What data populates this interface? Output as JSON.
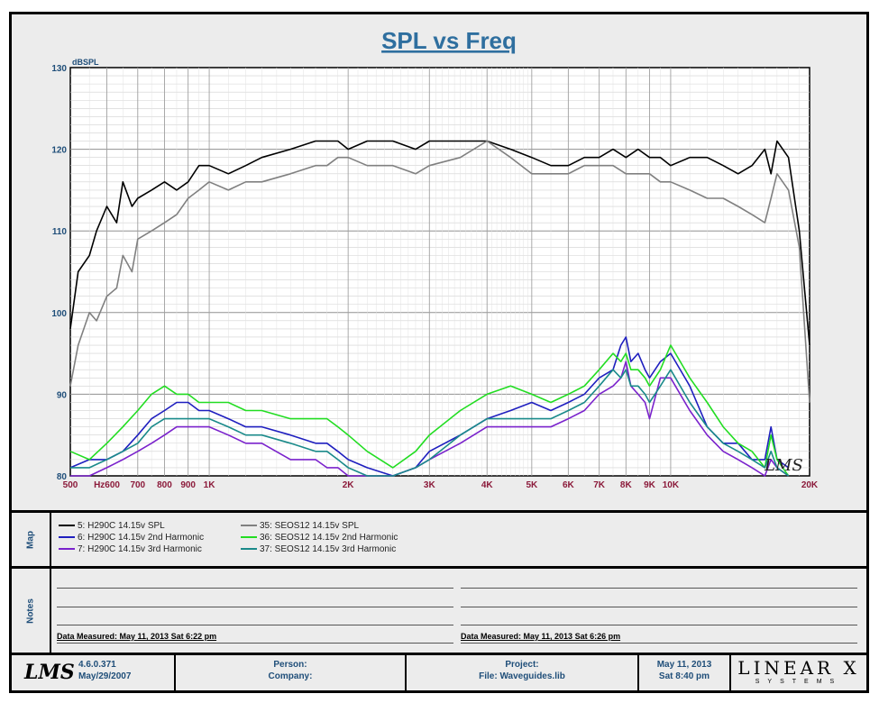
{
  "chart_data": {
    "type": "line",
    "title": "SPL vs Freq",
    "ylabel": "dBSPL",
    "xscale": "log",
    "xlim": [
      500,
      20000
    ],
    "ylim": [
      80,
      130
    ],
    "yticks": [
      80,
      90,
      100,
      110,
      120,
      130
    ],
    "xticks": [
      {
        "v": 500,
        "label": "500"
      },
      {
        "v": 600,
        "label": "Hz600"
      },
      {
        "v": 700,
        "label": "700"
      },
      {
        "v": 800,
        "label": "800"
      },
      {
        "v": 900,
        "label": "900"
      },
      {
        "v": 1000,
        "label": "1K"
      },
      {
        "v": 2000,
        "label": "2K"
      },
      {
        "v": 3000,
        "label": "3K"
      },
      {
        "v": 4000,
        "label": "4K"
      },
      {
        "v": 5000,
        "label": "5K"
      },
      {
        "v": 6000,
        "label": "6K"
      },
      {
        "v": 7000,
        "label": "7K"
      },
      {
        "v": 8000,
        "label": "8K"
      },
      {
        "v": 9000,
        "label": "9K"
      },
      {
        "v": 10000,
        "label": "10K"
      },
      {
        "v": 20000,
        "label": "20K"
      }
    ],
    "grid": true,
    "watermark": "LMS",
    "series": [
      {
        "name": "5: H290C 14.15v SPL",
        "color": "#000000",
        "x": [
          500,
          520,
          550,
          570,
          600,
          630,
          650,
          680,
          700,
          750,
          800,
          850,
          900,
          950,
          1000,
          1100,
          1200,
          1300,
          1500,
          1700,
          1800,
          1900,
          2000,
          2200,
          2500,
          2800,
          3000,
          3500,
          4000,
          4500,
          5000,
          5500,
          6000,
          6500,
          7000,
          7500,
          8000,
          8500,
          9000,
          9500,
          10000,
          11000,
          12000,
          13000,
          14000,
          15000,
          16000,
          16500,
          17000,
          18000,
          19000,
          20000
        ],
        "y": [
          98,
          105,
          107,
          110,
          113,
          111,
          116,
          113,
          114,
          115,
          116,
          115,
          116,
          118,
          118,
          117,
          118,
          119,
          120,
          121,
          121,
          121,
          120,
          121,
          121,
          120,
          121,
          121,
          121,
          120,
          119,
          118,
          118,
          119,
          119,
          120,
          119,
          120,
          119,
          119,
          118,
          119,
          119,
          118,
          117,
          118,
          120,
          117,
          121,
          119,
          110,
          96
        ]
      },
      {
        "name": "35: SEOS12 14.15v SPL",
        "color": "#808080",
        "x": [
          500,
          520,
          550,
          570,
          600,
          630,
          650,
          680,
          700,
          750,
          800,
          850,
          900,
          950,
          1000,
          1100,
          1200,
          1300,
          1500,
          1700,
          1800,
          1900,
          2000,
          2200,
          2500,
          2800,
          3000,
          3500,
          4000,
          4500,
          5000,
          5500,
          6000,
          6500,
          7000,
          7500,
          8000,
          8500,
          9000,
          9500,
          10000,
          11000,
          12000,
          13000,
          14000,
          15000,
          16000,
          16500,
          17000,
          18000,
          19000,
          20000
        ],
        "y": [
          91,
          96,
          100,
          99,
          102,
          103,
          107,
          105,
          109,
          110,
          111,
          112,
          114,
          115,
          116,
          115,
          116,
          116,
          117,
          118,
          118,
          119,
          119,
          118,
          118,
          117,
          118,
          119,
          121,
          119,
          117,
          117,
          117,
          118,
          118,
          118,
          117,
          117,
          117,
          116,
          116,
          115,
          114,
          114,
          113,
          112,
          111,
          114,
          117,
          115,
          108,
          89
        ]
      },
      {
        "name": "6: H290C 14.15v 2nd Harmonic",
        "color": "#1f1fbf",
        "x": [
          500,
          550,
          600,
          650,
          700,
          750,
          800,
          850,
          900,
          950,
          1000,
          1100,
          1200,
          1300,
          1500,
          1700,
          1800,
          1900,
          2000,
          2200,
          2500,
          2800,
          3000,
          3500,
          4000,
          4500,
          5000,
          5500,
          6000,
          6500,
          7000,
          7500,
          7800,
          8000,
          8200,
          8500,
          8800,
          9000,
          9500,
          10000,
          11000,
          12000,
          13000,
          14000,
          15000,
          16000,
          16500,
          17000,
          18000
        ],
        "y": [
          81,
          82,
          82,
          83,
          85,
          87,
          88,
          89,
          89,
          88,
          88,
          87,
          86,
          86,
          85,
          84,
          84,
          83,
          82,
          81,
          80,
          81,
          83,
          85,
          87,
          88,
          89,
          88,
          89,
          90,
          92,
          93,
          96,
          97,
          94,
          95,
          93,
          92,
          94,
          95,
          91,
          86,
          84,
          84,
          82,
          82,
          86,
          82,
          81
        ]
      },
      {
        "name": "36: SEOS12 14.15v 2nd Harmonic",
        "color": "#22dd22",
        "x": [
          500,
          550,
          600,
          650,
          700,
          750,
          800,
          850,
          900,
          950,
          1000,
          1100,
          1200,
          1300,
          1500,
          1700,
          1800,
          1900,
          2000,
          2200,
          2500,
          2800,
          3000,
          3500,
          4000,
          4500,
          5000,
          5500,
          6000,
          6500,
          7000,
          7500,
          7800,
          8000,
          8200,
          8500,
          8800,
          9000,
          9500,
          10000,
          11000,
          12000,
          13000,
          14000,
          15000,
          16000,
          16500,
          17000,
          18000
        ],
        "y": [
          83,
          82,
          84,
          86,
          88,
          90,
          91,
          90,
          90,
          89,
          89,
          89,
          88,
          88,
          87,
          87,
          87,
          86,
          85,
          83,
          81,
          83,
          85,
          88,
          90,
          91,
          90,
          89,
          90,
          91,
          93,
          95,
          94,
          95,
          93,
          93,
          92,
          91,
          93,
          96,
          92,
          89,
          86,
          84,
          83,
          81,
          85,
          82,
          80
        ]
      },
      {
        "name": "7: H290C 14.15v 3rd Harmonic",
        "color": "#7a22cc",
        "x": [
          500,
          550,
          600,
          650,
          700,
          750,
          800,
          850,
          900,
          950,
          1000,
          1100,
          1200,
          1300,
          1500,
          1700,
          1800,
          1900,
          2000,
          2200,
          2500,
          2800,
          3000,
          3500,
          4000,
          4500,
          5000,
          5500,
          6000,
          6500,
          7000,
          7500,
          7800,
          8000,
          8200,
          8500,
          8800,
          9000,
          9500,
          10000,
          11000,
          12000,
          13000,
          14000,
          15000,
          16000,
          16500,
          17000,
          18000
        ],
        "y": [
          80,
          80,
          81,
          82,
          83,
          84,
          85,
          86,
          86,
          86,
          86,
          85,
          84,
          84,
          82,
          82,
          81,
          81,
          80,
          80,
          80,
          81,
          82,
          84,
          86,
          86,
          86,
          86,
          87,
          88,
          90,
          91,
          92,
          94,
          91,
          90,
          89,
          87,
          92,
          92,
          88,
          85,
          83,
          82,
          81,
          80,
          82,
          81,
          80
        ]
      },
      {
        "name": "37: SEOS12 14.15v 3rd Harmonic",
        "color": "#1a8a8a",
        "x": [
          500,
          550,
          600,
          650,
          700,
          750,
          800,
          850,
          900,
          950,
          1000,
          1100,
          1200,
          1300,
          1500,
          1700,
          1800,
          1900,
          2000,
          2200,
          2500,
          2800,
          3000,
          3500,
          4000,
          4500,
          5000,
          5500,
          6000,
          6500,
          7000,
          7500,
          7800,
          8000,
          8200,
          8500,
          8800,
          9000,
          9500,
          10000,
          11000,
          12000,
          13000,
          14000,
          15000,
          16000,
          16500,
          17000,
          18000
        ],
        "y": [
          81,
          81,
          82,
          83,
          84,
          86,
          87,
          87,
          87,
          87,
          87,
          86,
          85,
          85,
          84,
          83,
          83,
          82,
          81,
          80,
          80,
          81,
          82,
          85,
          87,
          87,
          87,
          87,
          88,
          89,
          91,
          93,
          92,
          93,
          91,
          91,
          90,
          89,
          91,
          93,
          89,
          86,
          84,
          83,
          82,
          81,
          83,
          81,
          80
        ]
      }
    ]
  },
  "legend_label": "Map",
  "legend": [
    {
      "label": "5: H290C 14.15v SPL",
      "color": "#000000"
    },
    {
      "label": "6: H290C 14.15v 2nd Harmonic",
      "color": "#1f1fbf"
    },
    {
      "label": "7: H290C 14.15v 3rd Harmonic",
      "color": "#7a22cc"
    },
    {
      "label": "35: SEOS12 14.15v SPL",
      "color": "#808080"
    },
    {
      "label": "36: SEOS12 14.15v 2nd Harmonic",
      "color": "#22dd22"
    },
    {
      "label": "37: SEOS12 14.15v 3rd Harmonic",
      "color": "#1a8a8a"
    }
  ],
  "notes": {
    "label": "Notes",
    "measured_left": "Data Measured: May 11, 2013  Sat  6:22 pm",
    "measured_right": "Data Measured: May 11, 2013  Sat  6:26 pm"
  },
  "footer": {
    "logo": "LMS",
    "version": "4.6.0.371",
    "version_date": "May/29/2007",
    "person": "Person:",
    "company": "Company:",
    "project": "Project:",
    "file": "File: Waveguides.lib",
    "date": "May 11, 2013",
    "time": "Sat  8:40 pm",
    "brand": "LINEAR X",
    "brand_sub": "SYSTEMS"
  }
}
